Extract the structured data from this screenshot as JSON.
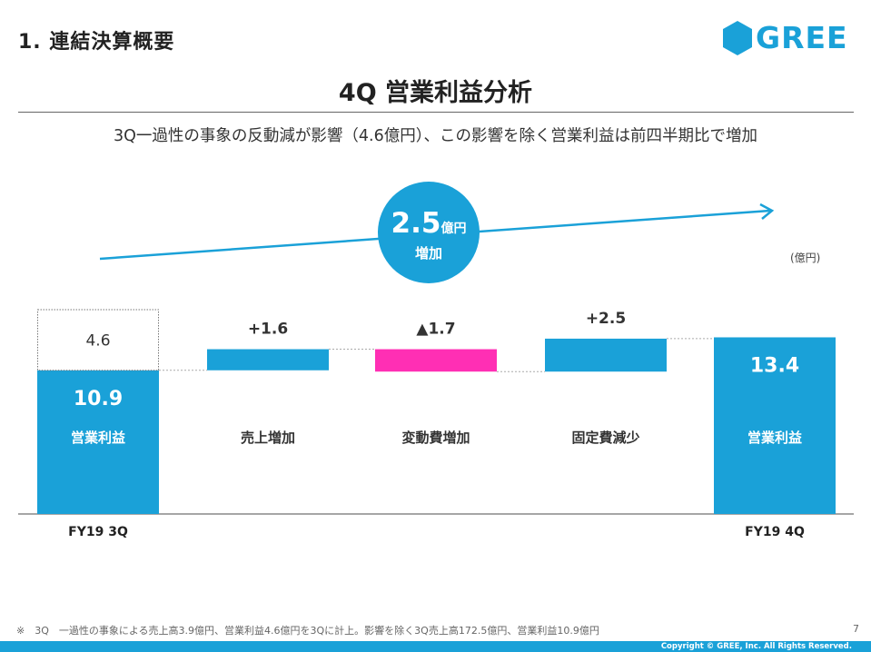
{
  "header": {
    "section_title": "1. 連結決算概要",
    "logo_text": "GREE",
    "main_title": "4Q 営業利益分析",
    "subtitle": "3Q一過性の事象の反動減が影響（4.6億円）、この影響を除く営業利益は前四半期比で増加"
  },
  "bubble": {
    "value": "2.5",
    "unit": "億円",
    "label": "増加"
  },
  "footnote": "※　3Q　一過性の事象による売上高3.9億円、営業利益4.6億円を3Qに計上。影響を除く3Q売上高172.5億円、営業利益10.9億円",
  "page_number": "7",
  "copyright": "Copyright © GREE, Inc. All Rights Reserved.",
  "colors": {
    "accent": "#1aa1d8",
    "negative": "#ff2fb4",
    "text": "#333333"
  },
  "chart_data": {
    "type": "bar",
    "subtype": "waterfall",
    "unit": "(億円)",
    "ylim": [
      0,
      15.5
    ],
    "steps": [
      {
        "category": "FY19 3Q",
        "inner_label": "営業利益",
        "kind": "total",
        "value": 10.9,
        "value_label": "10.9",
        "extra": {
          "value": 4.6,
          "value_label": "4.6",
          "style": "dotted"
        }
      },
      {
        "category": "",
        "inner_label": "売上増加",
        "kind": "increase",
        "value": 1.6,
        "value_label": "+1.6"
      },
      {
        "category": "",
        "inner_label": "変動費増加",
        "kind": "decrease",
        "value": -1.7,
        "value_label": "▲1.7"
      },
      {
        "category": "",
        "inner_label": "固定費減少",
        "kind": "increase",
        "value": 2.5,
        "value_label": "+2.5"
      },
      {
        "category": "FY19 4Q",
        "inner_label": "営業利益",
        "kind": "total",
        "value": 13.4,
        "value_label": "13.4"
      }
    ]
  }
}
